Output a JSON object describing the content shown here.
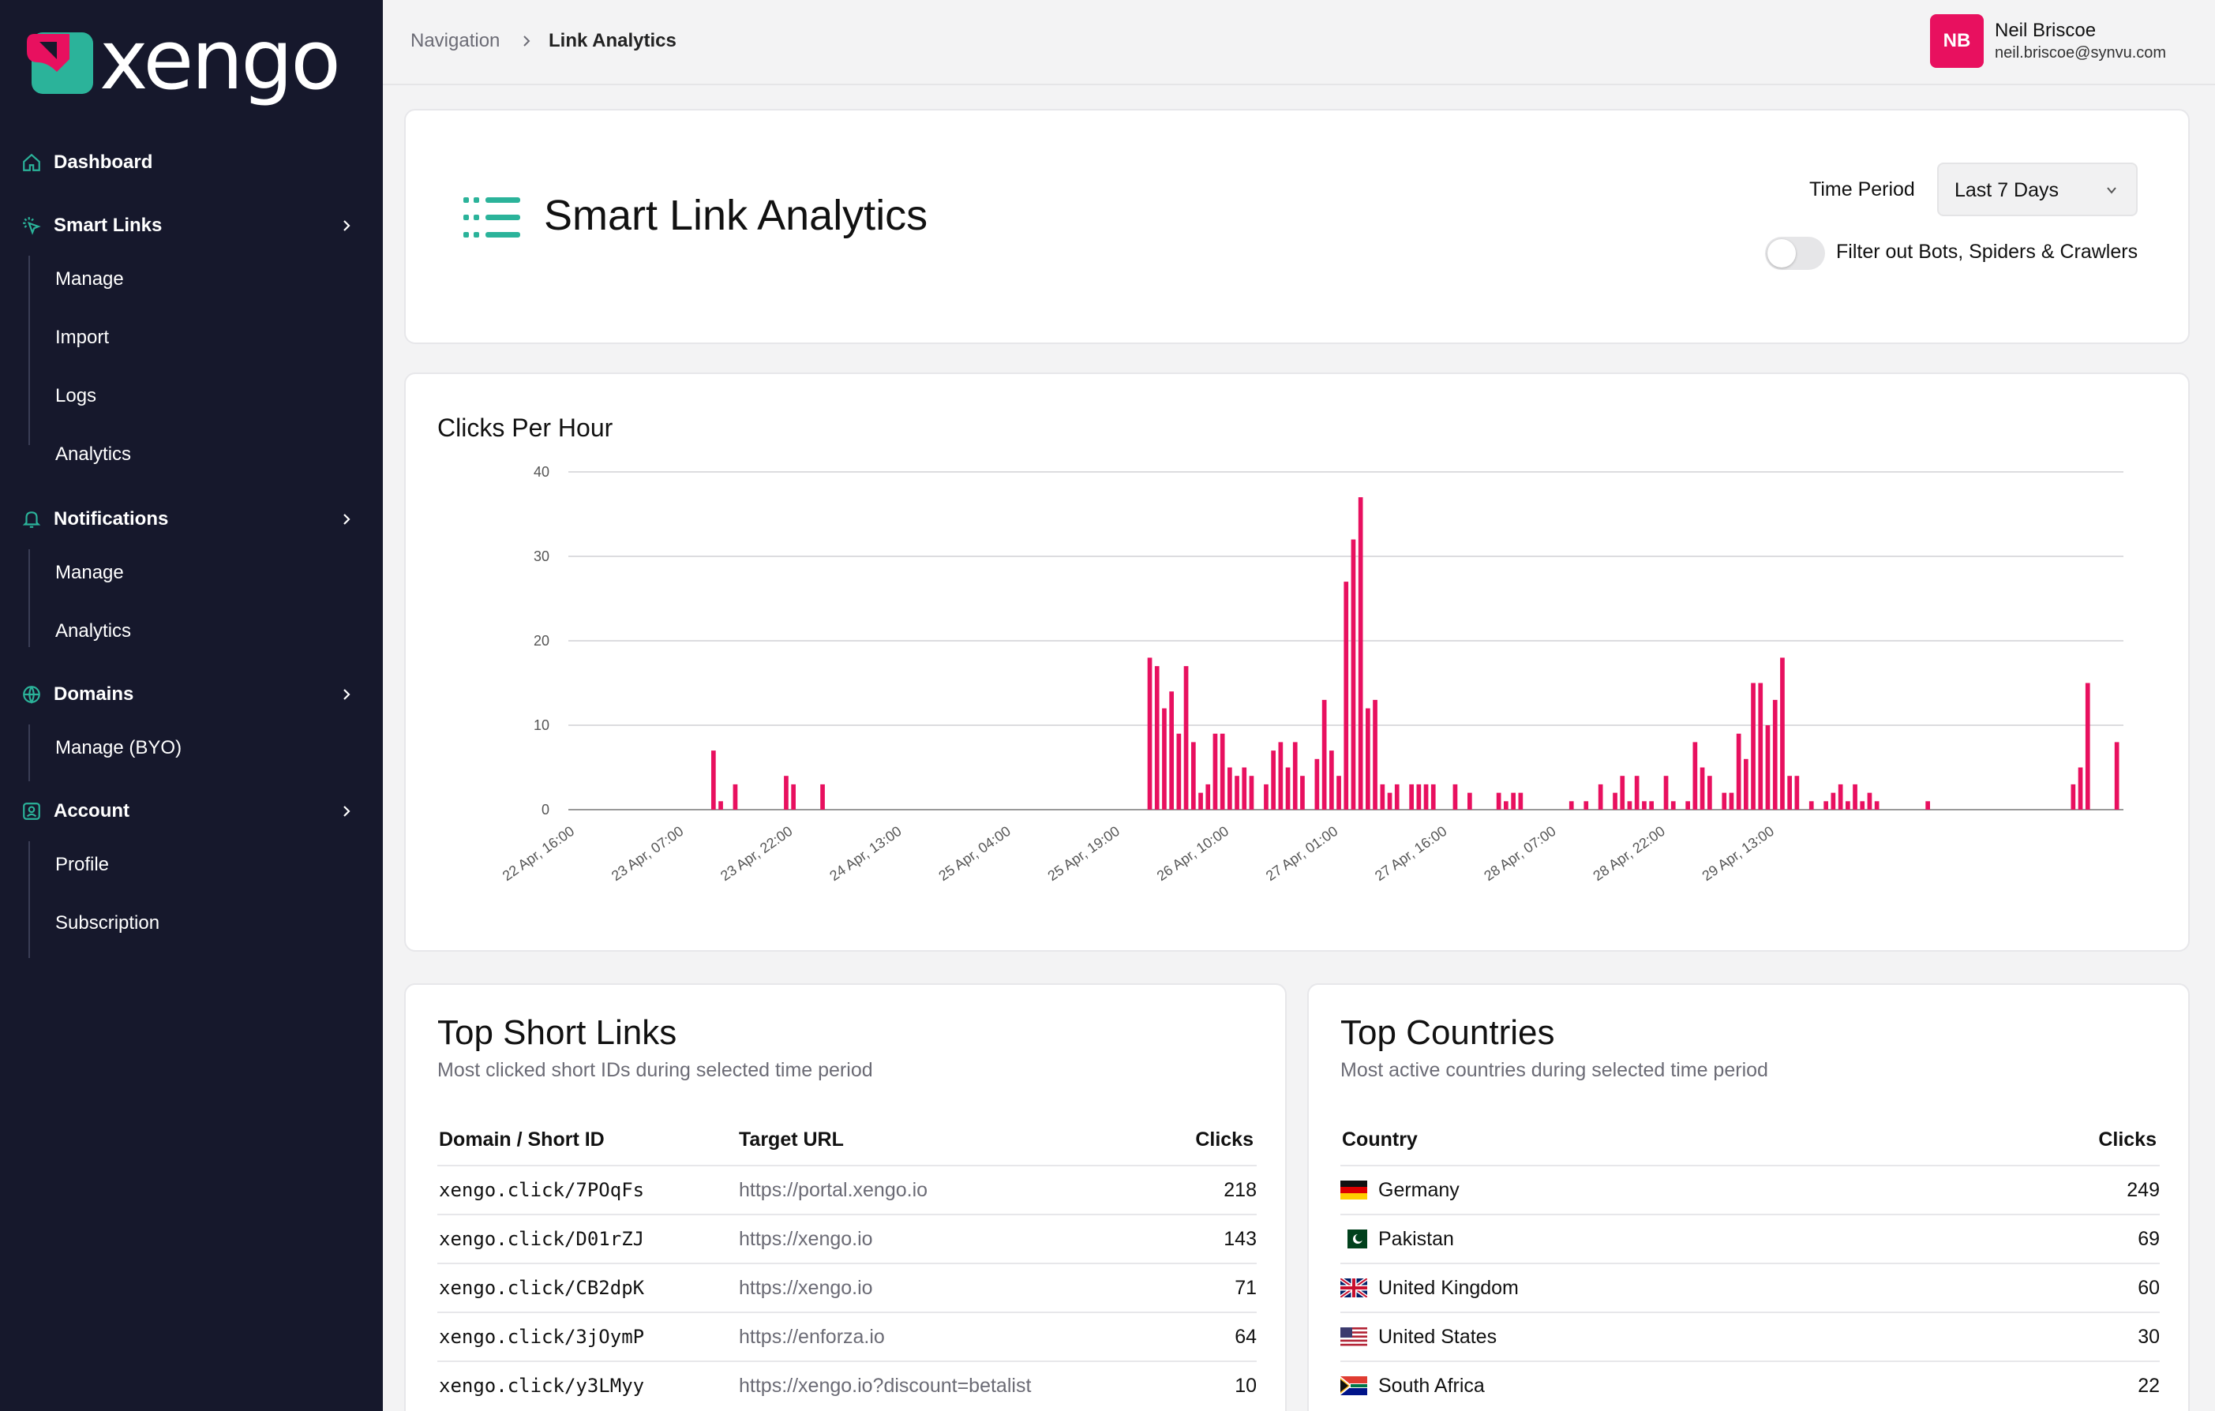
{
  "brand": {
    "name": "xengo",
    "primary": "#e8105f",
    "accent": "#2bb39a",
    "sidebar_bg": "#16182c"
  },
  "sidebar": {
    "items": [
      {
        "label": "Dashboard",
        "icon": "home-icon"
      },
      {
        "label": "Smart Links",
        "icon": "cursor-click-icon",
        "children": [
          "Manage",
          "Import",
          "Logs",
          "Analytics"
        ]
      },
      {
        "label": "Notifications",
        "icon": "bell-icon",
        "children": [
          "Manage",
          "Analytics"
        ]
      },
      {
        "label": "Domains",
        "icon": "globe-icon",
        "children": [
          "Manage (BYO)"
        ]
      },
      {
        "label": "Account",
        "icon": "user-square-icon",
        "children": [
          "Profile",
          "Subscription"
        ]
      }
    ]
  },
  "breadcrumb": {
    "root": "Navigation",
    "current": "Link Analytics"
  },
  "user": {
    "initials": "NB",
    "name": "Neil Briscoe",
    "email": "neil.briscoe@synvu.com"
  },
  "header": {
    "title": "Smart Link Analytics",
    "time_period_label": "Time Period",
    "time_period_value": "Last 7 Days",
    "filter_label": "Filter out Bots, Spiders & Crawlers",
    "filter_on": false
  },
  "chart_data": {
    "type": "bar",
    "title": "Clicks Per Hour",
    "ylim": [
      0,
      40
    ],
    "yticks": [
      0,
      10,
      20,
      30,
      40
    ],
    "x_tick_labels": [
      "22 Apr, 16:00",
      "23 Apr, 07:00",
      "23 Apr, 22:00",
      "24 Apr, 13:00",
      "25 Apr, 04:00",
      "25 Apr, 19:00",
      "26 Apr, 10:00",
      "27 Apr, 01:00",
      "27 Apr, 16:00",
      "28 Apr, 07:00",
      "28 Apr, 22:00",
      "29 Apr, 13:00"
    ],
    "x_tick_step": 15,
    "grid": true,
    "color": "#e8105f",
    "values": [
      0,
      0,
      0,
      0,
      0,
      0,
      0,
      0,
      0,
      0,
      0,
      0,
      0,
      0,
      0,
      0,
      0,
      0,
      0,
      7,
      1,
      0,
      3,
      0,
      0,
      0,
      0,
      0,
      0,
      4,
      3,
      0,
      0,
      0,
      3,
      0,
      0,
      0,
      0,
      0,
      0,
      0,
      0,
      0,
      0,
      0,
      0,
      0,
      0,
      0,
      0,
      0,
      0,
      0,
      0,
      0,
      0,
      0,
      0,
      0,
      0,
      0,
      0,
      0,
      0,
      0,
      0,
      0,
      0,
      0,
      0,
      0,
      0,
      0,
      0,
      0,
      0,
      0,
      0,
      18,
      17,
      12,
      14,
      9,
      17,
      8,
      2,
      3,
      9,
      9,
      5,
      4,
      5,
      4,
      0,
      3,
      7,
      8,
      5,
      8,
      4,
      0,
      6,
      13,
      7,
      4,
      27,
      32,
      37,
      12,
      13,
      3,
      2,
      3,
      0,
      3,
      3,
      3,
      3,
      0,
      0,
      3,
      0,
      2,
      0,
      0,
      0,
      2,
      1,
      2,
      2,
      0,
      0,
      0,
      0,
      0,
      0,
      1,
      0,
      1,
      0,
      3,
      0,
      2,
      4,
      1,
      4,
      1,
      1,
      0,
      4,
      1,
      0,
      1,
      8,
      5,
      4,
      0,
      2,
      2,
      9,
      6,
      15,
      15,
      10,
      13,
      18,
      4,
      4,
      0,
      1,
      0,
      1,
      2,
      3,
      1,
      3,
      1,
      2,
      1,
      0,
      0,
      0,
      0,
      0,
      0,
      1,
      0,
      0,
      0,
      0,
      0,
      0,
      0,
      0,
      0,
      0,
      0,
      0,
      0,
      0,
      0,
      0,
      0,
      0,
      0,
      3,
      5,
      15,
      0,
      0,
      0,
      8
    ]
  },
  "top_links": {
    "title": "Top Short Links",
    "subtitle": "Most clicked short IDs during selected time period",
    "columns": [
      "Domain / Short ID",
      "Target URL",
      "Clicks"
    ],
    "rows": [
      {
        "id": "xengo.click/7POqFs",
        "url": "https://portal.xengo.io",
        "clicks": "218"
      },
      {
        "id": "xengo.click/D01rZJ",
        "url": "https://xengo.io",
        "clicks": "143"
      },
      {
        "id": "xengo.click/CB2dpK",
        "url": "https://xengo.io",
        "clicks": "71"
      },
      {
        "id": "xengo.click/3jOymP",
        "url": "https://enforza.io",
        "clicks": "64"
      },
      {
        "id": "xengo.click/y3LMyy",
        "url": "https://xengo.io?discount=betalist",
        "clicks": "10"
      }
    ]
  },
  "top_countries": {
    "title": "Top Countries",
    "subtitle": "Most active countries during selected time period",
    "columns": [
      "Country",
      "Clicks"
    ],
    "rows": [
      {
        "name": "Germany",
        "clicks": "249",
        "flag": "de-flag-icon"
      },
      {
        "name": "Pakistan",
        "clicks": "69",
        "flag": "pk-flag-icon"
      },
      {
        "name": "United Kingdom",
        "clicks": "60",
        "flag": "gb-flag-icon"
      },
      {
        "name": "United States",
        "clicks": "30",
        "flag": "us-flag-icon"
      },
      {
        "name": "South Africa",
        "clicks": "22",
        "flag": "za-flag-icon"
      }
    ]
  }
}
